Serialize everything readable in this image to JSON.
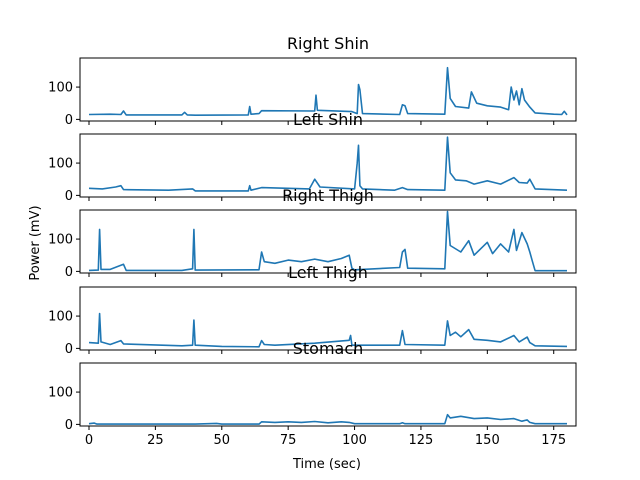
{
  "figure": {
    "xlabel": "Time (sec)",
    "ylabel": "Power (mV)"
  },
  "chart_data": {
    "type": "line",
    "x_range": [
      0,
      180
    ],
    "x_ticks": [
      0,
      25,
      50,
      75,
      100,
      125,
      150,
      175
    ],
    "ylim": [
      -5,
      190
    ],
    "y_ticks": [
      0,
      100
    ],
    "line_color": "#1f77b4",
    "grid": false,
    "shared_x": true,
    "panels": [
      {
        "title": "Right Shin",
        "points": [
          [
            0,
            15
          ],
          [
            8,
            16
          ],
          [
            12,
            15
          ],
          [
            13,
            26
          ],
          [
            14,
            14
          ],
          [
            35,
            14
          ],
          [
            36,
            22
          ],
          [
            37,
            14
          ],
          [
            40,
            13
          ],
          [
            60,
            14
          ],
          [
            60.5,
            40
          ],
          [
            61,
            16
          ],
          [
            64,
            18
          ],
          [
            65,
            27
          ],
          [
            85,
            26
          ],
          [
            85.5,
            75
          ],
          [
            86,
            28
          ],
          [
            99,
            24
          ],
          [
            101,
            18
          ],
          [
            101.5,
            108
          ],
          [
            102,
            92
          ],
          [
            103,
            18
          ],
          [
            117,
            15
          ],
          [
            118,
            45
          ],
          [
            119,
            42
          ],
          [
            120,
            18
          ],
          [
            134,
            16
          ],
          [
            135,
            160
          ],
          [
            136,
            65
          ],
          [
            138,
            40
          ],
          [
            143,
            35
          ],
          [
            144,
            85
          ],
          [
            146,
            50
          ],
          [
            150,
            42
          ],
          [
            155,
            38
          ],
          [
            158,
            30
          ],
          [
            159,
            100
          ],
          [
            160,
            60
          ],
          [
            161,
            88
          ],
          [
            162,
            45
          ],
          [
            163,
            95
          ],
          [
            164,
            60
          ],
          [
            166,
            38
          ],
          [
            168,
            20
          ],
          [
            175,
            16
          ],
          [
            178,
            15
          ],
          [
            179,
            25
          ],
          [
            180,
            14
          ]
        ]
      },
      {
        "title": "Left Shin",
        "points": [
          [
            0,
            22
          ],
          [
            5,
            20
          ],
          [
            10,
            26
          ],
          [
            12,
            30
          ],
          [
            13,
            18
          ],
          [
            30,
            16
          ],
          [
            39,
            20
          ],
          [
            40,
            14
          ],
          [
            60,
            14
          ],
          [
            60.5,
            30
          ],
          [
            61,
            16
          ],
          [
            65,
            24
          ],
          [
            83,
            20
          ],
          [
            85,
            50
          ],
          [
            87,
            26
          ],
          [
            100,
            20
          ],
          [
            101,
            100
          ],
          [
            101.5,
            155
          ],
          [
            102,
            30
          ],
          [
            103,
            20
          ],
          [
            115,
            16
          ],
          [
            118,
            24
          ],
          [
            120,
            18
          ],
          [
            134,
            16
          ],
          [
            135,
            180
          ],
          [
            136,
            70
          ],
          [
            138,
            48
          ],
          [
            142,
            45
          ],
          [
            145,
            35
          ],
          [
            150,
            45
          ],
          [
            155,
            35
          ],
          [
            160,
            55
          ],
          [
            162,
            40
          ],
          [
            165,
            38
          ],
          [
            166,
            50
          ],
          [
            168,
            20
          ],
          [
            180,
            16
          ]
        ]
      },
      {
        "title": "Right Thigh",
        "points": [
          [
            0,
            3
          ],
          [
            3.5,
            4
          ],
          [
            4,
            130
          ],
          [
            4.5,
            6
          ],
          [
            8,
            6
          ],
          [
            13,
            22
          ],
          [
            14,
            3
          ],
          [
            35,
            3
          ],
          [
            39,
            8
          ],
          [
            39.5,
            130
          ],
          [
            40,
            4
          ],
          [
            64,
            5
          ],
          [
            65,
            60
          ],
          [
            66,
            30
          ],
          [
            70,
            25
          ],
          [
            75,
            35
          ],
          [
            80,
            30
          ],
          [
            85,
            38
          ],
          [
            90,
            30
          ],
          [
            95,
            40
          ],
          [
            98,
            50
          ],
          [
            99,
            10
          ],
          [
            100,
            5
          ],
          [
            117,
            12
          ],
          [
            118,
            60
          ],
          [
            119,
            68
          ],
          [
            120,
            10
          ],
          [
            134,
            8
          ],
          [
            135,
            185
          ],
          [
            136,
            80
          ],
          [
            140,
            60
          ],
          [
            143,
            95
          ],
          [
            145,
            50
          ],
          [
            150,
            90
          ],
          [
            152,
            55
          ],
          [
            155,
            85
          ],
          [
            158,
            60
          ],
          [
            160,
            130
          ],
          [
            161,
            65
          ],
          [
            163,
            120
          ],
          [
            165,
            85
          ],
          [
            166,
            60
          ],
          [
            167,
            30
          ],
          [
            168,
            2
          ],
          [
            180,
            2
          ]
        ]
      },
      {
        "title": "Left Thigh",
        "points": [
          [
            0,
            18
          ],
          [
            3.5,
            16
          ],
          [
            4,
            108
          ],
          [
            4.5,
            20
          ],
          [
            8,
            12
          ],
          [
            12,
            24
          ],
          [
            13,
            14
          ],
          [
            35,
            8
          ],
          [
            39,
            10
          ],
          [
            39.5,
            88
          ],
          [
            40,
            10
          ],
          [
            50,
            6
          ],
          [
            64,
            5
          ],
          [
            65,
            24
          ],
          [
            66,
            12
          ],
          [
            70,
            10
          ],
          [
            85,
            16
          ],
          [
            98,
            25
          ],
          [
            98.5,
            40
          ],
          [
            99,
            10
          ],
          [
            117,
            10
          ],
          [
            118,
            55
          ],
          [
            119,
            12
          ],
          [
            134,
            10
          ],
          [
            135,
            85
          ],
          [
            136,
            40
          ],
          [
            138,
            50
          ],
          [
            140,
            36
          ],
          [
            143,
            58
          ],
          [
            145,
            28
          ],
          [
            150,
            25
          ],
          [
            155,
            20
          ],
          [
            160,
            40
          ],
          [
            162,
            20
          ],
          [
            165,
            35
          ],
          [
            166,
            18
          ],
          [
            168,
            8
          ],
          [
            180,
            6
          ]
        ]
      },
      {
        "title": "Stomach",
        "points": [
          [
            0,
            2
          ],
          [
            2,
            4
          ],
          [
            3,
            1
          ],
          [
            20,
            1
          ],
          [
            40,
            1
          ],
          [
            48,
            3
          ],
          [
            50,
            1
          ],
          [
            64,
            1
          ],
          [
            65,
            8
          ],
          [
            70,
            6
          ],
          [
            75,
            8
          ],
          [
            80,
            6
          ],
          [
            85,
            9
          ],
          [
            90,
            5
          ],
          [
            95,
            8
          ],
          [
            98,
            6
          ],
          [
            100,
            2
          ],
          [
            117,
            2
          ],
          [
            118,
            5
          ],
          [
            119,
            2
          ],
          [
            134,
            2
          ],
          [
            135,
            30
          ],
          [
            136,
            20
          ],
          [
            140,
            25
          ],
          [
            145,
            18
          ],
          [
            150,
            20
          ],
          [
            155,
            15
          ],
          [
            160,
            18
          ],
          [
            163,
            10
          ],
          [
            165,
            14
          ],
          [
            166,
            6
          ],
          [
            168,
            2
          ],
          [
            180,
            2
          ]
        ]
      }
    ]
  }
}
